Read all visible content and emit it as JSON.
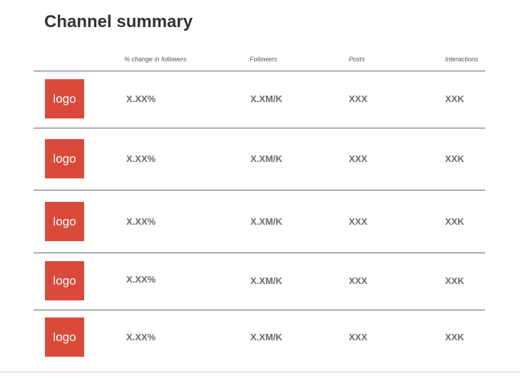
{
  "title": "Channel summary",
  "columns": {
    "change": "% change in followers",
    "followers": "Followers",
    "posts": "Posts",
    "interactions": "Interactions"
  },
  "rows": [
    {
      "logo": "logo",
      "change": "X.XX%",
      "followers": "X.XM/K",
      "posts": "XXX",
      "interactions": "XXK"
    },
    {
      "logo": "logo",
      "change": "X.XX%",
      "followers": "X.XM/K",
      "posts": "XXX",
      "interactions": "XXK"
    },
    {
      "logo": "logo",
      "change": "X.XX%",
      "followers": "X.XM/K",
      "posts": "XXX",
      "interactions": "XXK"
    },
    {
      "logo": "logo",
      "change": "X.XX%",
      "followers": "X.XM/K",
      "posts": "XXX",
      "interactions": "XXK"
    },
    {
      "logo": "logo",
      "change": "X.XX%",
      "followers": "X.XM/K",
      "posts": "XXX",
      "interactions": "XXK"
    }
  ],
  "colors": {
    "logo_background": "#d94a3a",
    "title_text": "#333333",
    "value_text": "#6a6a6a"
  }
}
